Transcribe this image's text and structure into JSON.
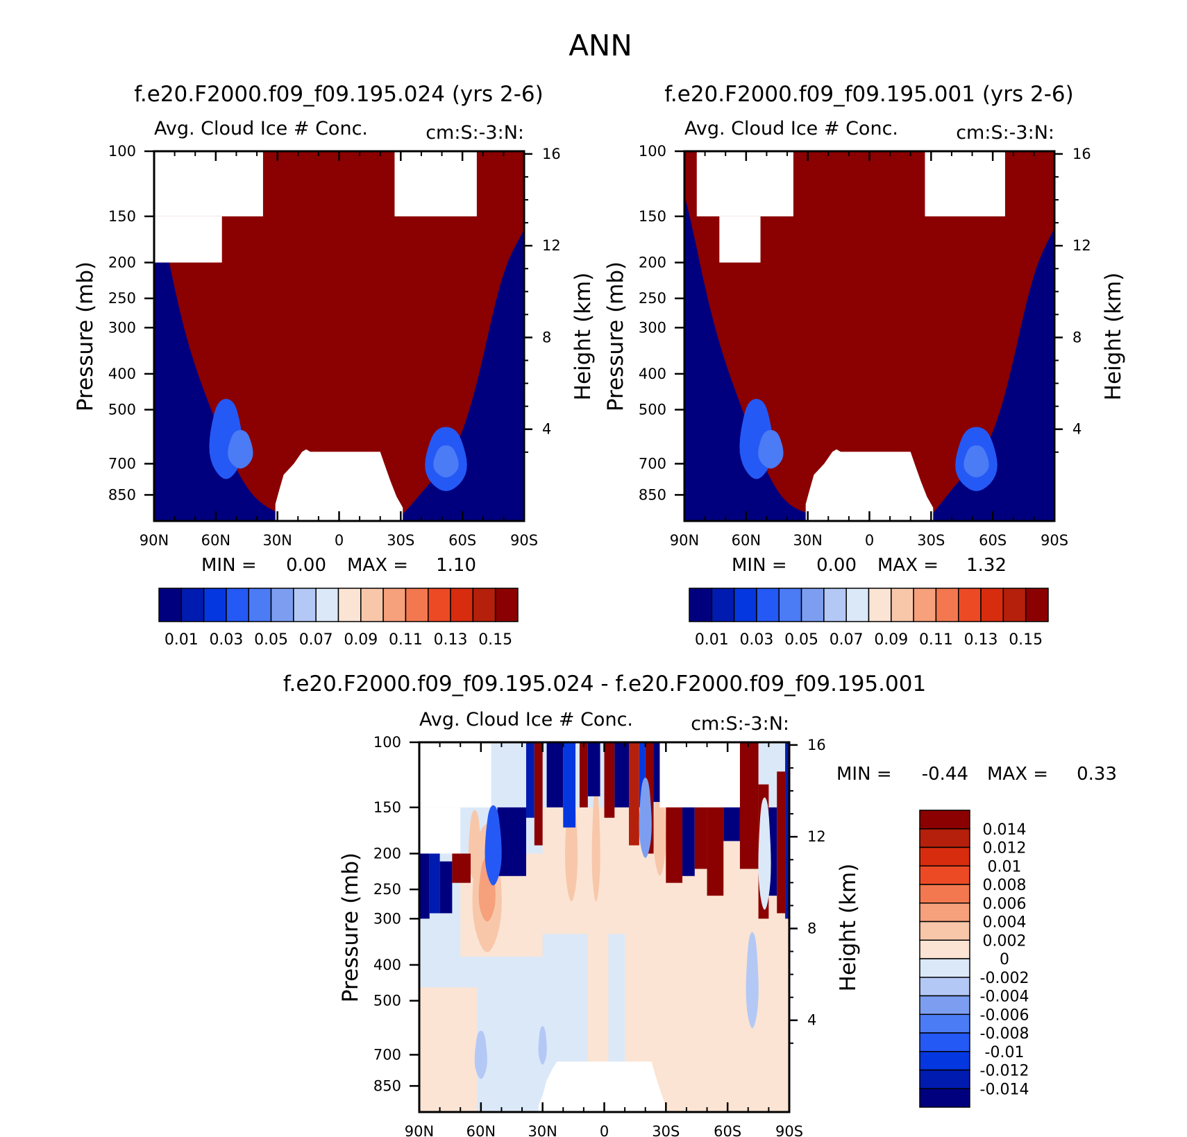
{
  "figure": {
    "title": "ANN"
  },
  "chart_data": [
    {
      "type": "heatmap",
      "id": "case",
      "title": "f.e20.F2000.f09_f09.195.024 (yrs 2-6)",
      "left_subtitle": "Avg. Cloud Ice # Conc.",
      "right_subtitle": "cm:S:-3:N:",
      "xlabel": "",
      "ylabel": "Pressure (mb)",
      "ylabel_right": "Height (km)",
      "x_ticks": [
        "90N",
        "60N",
        "30N",
        "0",
        "30S",
        "60S",
        "90S"
      ],
      "xlim": [
        90,
        -90
      ],
      "y_ticks": [
        100,
        150,
        200,
        250,
        300,
        400,
        500,
        700,
        850
      ],
      "ylim": [
        100,
        1000
      ],
      "height_ticks": [
        16,
        12,
        8,
        4
      ],
      "min_label": "MIN =",
      "min_value": "0.00",
      "max_label": "MAX =",
      "max_value": "1.10",
      "levels": [
        0.01,
        0.02,
        0.03,
        0.04,
        0.05,
        0.06,
        0.07,
        0.08,
        0.09,
        0.1,
        0.11,
        0.12,
        0.13,
        0.14,
        0.15
      ],
      "colorbar_labels": [
        "0.01",
        "0.03",
        "0.05",
        "0.07",
        "0.09",
        "0.11",
        "0.13",
        "0.15"
      ]
    },
    {
      "type": "heatmap",
      "id": "control",
      "title": "f.e20.F2000.f09_f09.195.001 (yrs 2-6)",
      "left_subtitle": "Avg. Cloud Ice # Conc.",
      "right_subtitle": "cm:S:-3:N:",
      "xlabel": "",
      "ylabel": "Pressure (mb)",
      "ylabel_right": "Height (km)",
      "x_ticks": [
        "90N",
        "60N",
        "30N",
        "0",
        "30S",
        "60S",
        "90S"
      ],
      "xlim": [
        90,
        -90
      ],
      "y_ticks": [
        100,
        150,
        200,
        250,
        300,
        400,
        500,
        700,
        850
      ],
      "ylim": [
        100,
        1000
      ],
      "height_ticks": [
        16,
        12,
        8,
        4
      ],
      "min_label": "MIN =",
      "min_value": "0.00",
      "max_label": "MAX =",
      "max_value": "1.32",
      "levels": [
        0.01,
        0.02,
        0.03,
        0.04,
        0.05,
        0.06,
        0.07,
        0.08,
        0.09,
        0.1,
        0.11,
        0.12,
        0.13,
        0.14,
        0.15
      ],
      "colorbar_labels": [
        "0.01",
        "0.03",
        "0.05",
        "0.07",
        "0.09",
        "0.11",
        "0.13",
        "0.15"
      ]
    },
    {
      "type": "heatmap",
      "id": "difference",
      "title": "f.e20.F2000.f09_f09.195.024 - f.e20.F2000.f09_f09.195.001",
      "left_subtitle": "Avg. Cloud Ice # Conc.",
      "right_subtitle": "cm:S:-3:N:",
      "xlabel": "",
      "ylabel": "Pressure (mb)",
      "ylabel_right": "Height (km)",
      "x_ticks": [
        "90N",
        "60N",
        "30N",
        "0",
        "30S",
        "60S",
        "90S"
      ],
      "xlim": [
        90,
        -90
      ],
      "y_ticks": [
        100,
        150,
        200,
        250,
        300,
        400,
        500,
        700,
        850
      ],
      "ylim": [
        100,
        1000
      ],
      "height_ticks": [
        16,
        12,
        8,
        4
      ],
      "min_label": "MIN =",
      "min_value": "-0.44",
      "max_label": "MAX =",
      "max_value": "0.33",
      "levels": [
        -0.014,
        -0.012,
        -0.01,
        -0.008,
        -0.006,
        -0.004,
        -0.002,
        0,
        0.002,
        0.004,
        0.006,
        0.008,
        0.01,
        0.012,
        0.014
      ],
      "colorbar_labels": [
        "0.014",
        "0.012",
        "0.01",
        "0.008",
        "0.006",
        "0.004",
        "0.002",
        "0",
        "-0.002",
        "-0.004",
        "-0.006",
        "-0.008",
        "-0.01",
        "-0.012",
        "-0.014"
      ]
    }
  ],
  "palette": [
    "#00007f",
    "#001bb0",
    "#0537e0",
    "#2559f5",
    "#4b7bf5",
    "#7d9ef0",
    "#b3c8f5",
    "#dbe8f8",
    "#fbe4d4",
    "#f8c7aa",
    "#f6a07c",
    "#f3784f",
    "#ec4a25",
    "#d82c0e",
    "#b4200b",
    "#8b0000"
  ]
}
